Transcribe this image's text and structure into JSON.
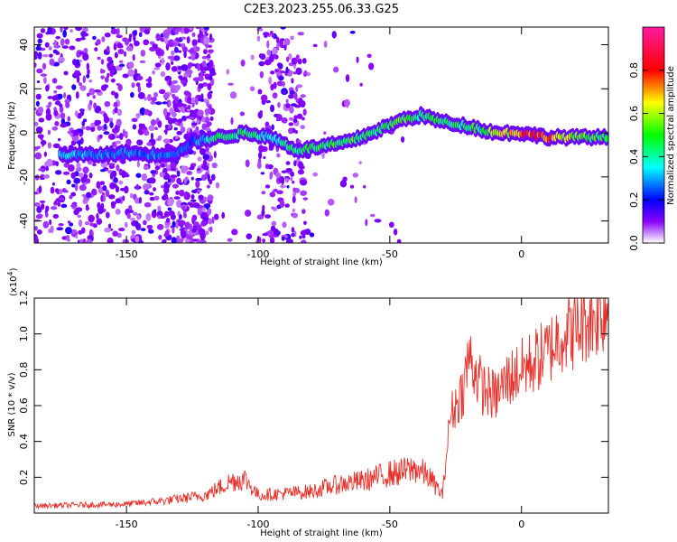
{
  "title": "C2E3.2023.255.06.33.G25",
  "chart_data": [
    {
      "type": "heatmap",
      "xlabel": "Height of straight line (km)",
      "ylabel": "Frequency (Hz)",
      "xlim": [
        -185,
        33
      ],
      "ylim": [
        -50,
        48
      ],
      "xticks": [
        -150,
        -100,
        -50,
        0
      ],
      "yticks": [
        -40,
        -20,
        0,
        20,
        40
      ],
      "xtick_labels": [
        "-150",
        "-100",
        "-50",
        "0"
      ],
      "ytick_labels": [
        "-40",
        "-20",
        "0",
        "20",
        "40"
      ],
      "colorbar": {
        "label": "Normalized spectral amplitude",
        "range": [
          0,
          1
        ],
        "ticks": [
          0.0,
          0.2,
          0.4,
          0.6,
          0.8
        ],
        "tick_labels": [
          "0.0",
          "0.2",
          "0.4",
          "0.6",
          "0.8"
        ]
      },
      "ridge": [
        {
          "x": -170,
          "y": -10,
          "amp": 0.35
        },
        {
          "x": -160,
          "y": -10,
          "amp": 0.3
        },
        {
          "x": -150,
          "y": -9,
          "amp": 0.3
        },
        {
          "x": -140,
          "y": -10,
          "amp": 0.3
        },
        {
          "x": -130,
          "y": -9,
          "amp": 0.3
        },
        {
          "x": -125,
          "y": -4,
          "amp": 0.25
        },
        {
          "x": -115,
          "y": -2,
          "amp": 0.5
        },
        {
          "x": -105,
          "y": 0,
          "amp": 0.5
        },
        {
          "x": -95,
          "y": -2,
          "amp": 0.4
        },
        {
          "x": -85,
          "y": -8,
          "amp": 0.5
        },
        {
          "x": -75,
          "y": -6,
          "amp": 0.55
        },
        {
          "x": -65,
          "y": -4,
          "amp": 0.55
        },
        {
          "x": -55,
          "y": 1,
          "amp": 0.5
        },
        {
          "x": -45,
          "y": 6,
          "amp": 0.55
        },
        {
          "x": -38,
          "y": 8,
          "amp": 0.5
        },
        {
          "x": -30,
          "y": 5,
          "amp": 0.5
        },
        {
          "x": -20,
          "y": 3,
          "amp": 0.5
        },
        {
          "x": -10,
          "y": 0,
          "amp": 0.6
        },
        {
          "x": 0,
          "y": 0,
          "amp": 0.85
        },
        {
          "x": 10,
          "y": -2,
          "amp": 0.8
        },
        {
          "x": 20,
          "y": -2,
          "amp": 0.6
        },
        {
          "x": 32,
          "y": -2,
          "amp": 0.5
        }
      ]
    },
    {
      "type": "line",
      "xlabel": "Height of straight line (km)",
      "ylabel": "SNR (10 * v/v)",
      "ylabel_multiplier": "(x10",
      "ylabel_multiplier_exp": "4",
      "ylabel_multiplier_close": ")",
      "xlim": [
        -185,
        33
      ],
      "ylim": [
        0,
        12000
      ],
      "xticks": [
        -150,
        -100,
        -50,
        0
      ],
      "yticks": [
        2000,
        4000,
        6000,
        8000,
        10000,
        12000
      ],
      "xtick_labels": [
        "-150",
        "-100",
        "-50",
        "0"
      ],
      "ytick_labels": [
        "0.2",
        "0.4",
        "0.6",
        "0.8",
        "1.0",
        "1.2"
      ],
      "series": [
        {
          "color": "#e8302a",
          "x": [
            -185,
            -170,
            -150,
            -135,
            -120,
            -110,
            -105,
            -100,
            -90,
            -80,
            -70,
            -60,
            -50,
            -45,
            -40,
            -35,
            -30,
            -27,
            -25,
            -22,
            -20,
            -15,
            -10,
            -5,
            0,
            5,
            10,
            15,
            20,
            25,
            30,
            33
          ],
          "y": [
            400,
            450,
            500,
            700,
            1000,
            1800,
            1900,
            1000,
            1100,
            1200,
            1600,
            1800,
            2200,
            2300,
            2500,
            2000,
            1000,
            5500,
            6000,
            7000,
            8800,
            7000,
            6500,
            7500,
            8000,
            8500,
            9000,
            10000,
            10200,
            10800,
            11200,
            11500
          ]
        }
      ]
    }
  ]
}
